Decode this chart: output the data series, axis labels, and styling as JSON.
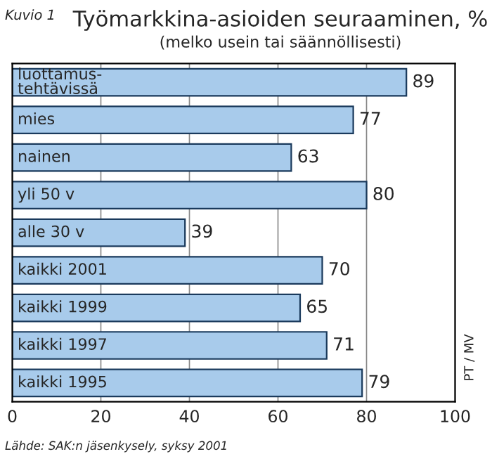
{
  "chart_data": {
    "type": "bar",
    "orientation": "horizontal",
    "title": "Työmarkkina-asioiden seuraaminen, %",
    "subtitle": "(melko usein tai säännöllisesti)",
    "categories": [
      "luottamus-\ntehtävissä",
      "mies",
      "nainen",
      "yli 50 v",
      "alle 30 v",
      "kaikki 2001",
      "kaikki 1999",
      "kaikki 1997",
      "kaikki 1995"
    ],
    "values": [
      89,
      77,
      63,
      80,
      39,
      70,
      65,
      71,
      79
    ],
    "color": "#a8cbeb",
    "data_labels": true,
    "xlim": [
      0,
      100
    ],
    "xticks": [
      0,
      20,
      40,
      60,
      80,
      100
    ],
    "grid": "x",
    "legend": false,
    "annotations": [
      "Kuvio 1",
      "PT / MV",
      "Lähde: SAK:n jäsenkysely, syksy 2001"
    ]
  }
}
